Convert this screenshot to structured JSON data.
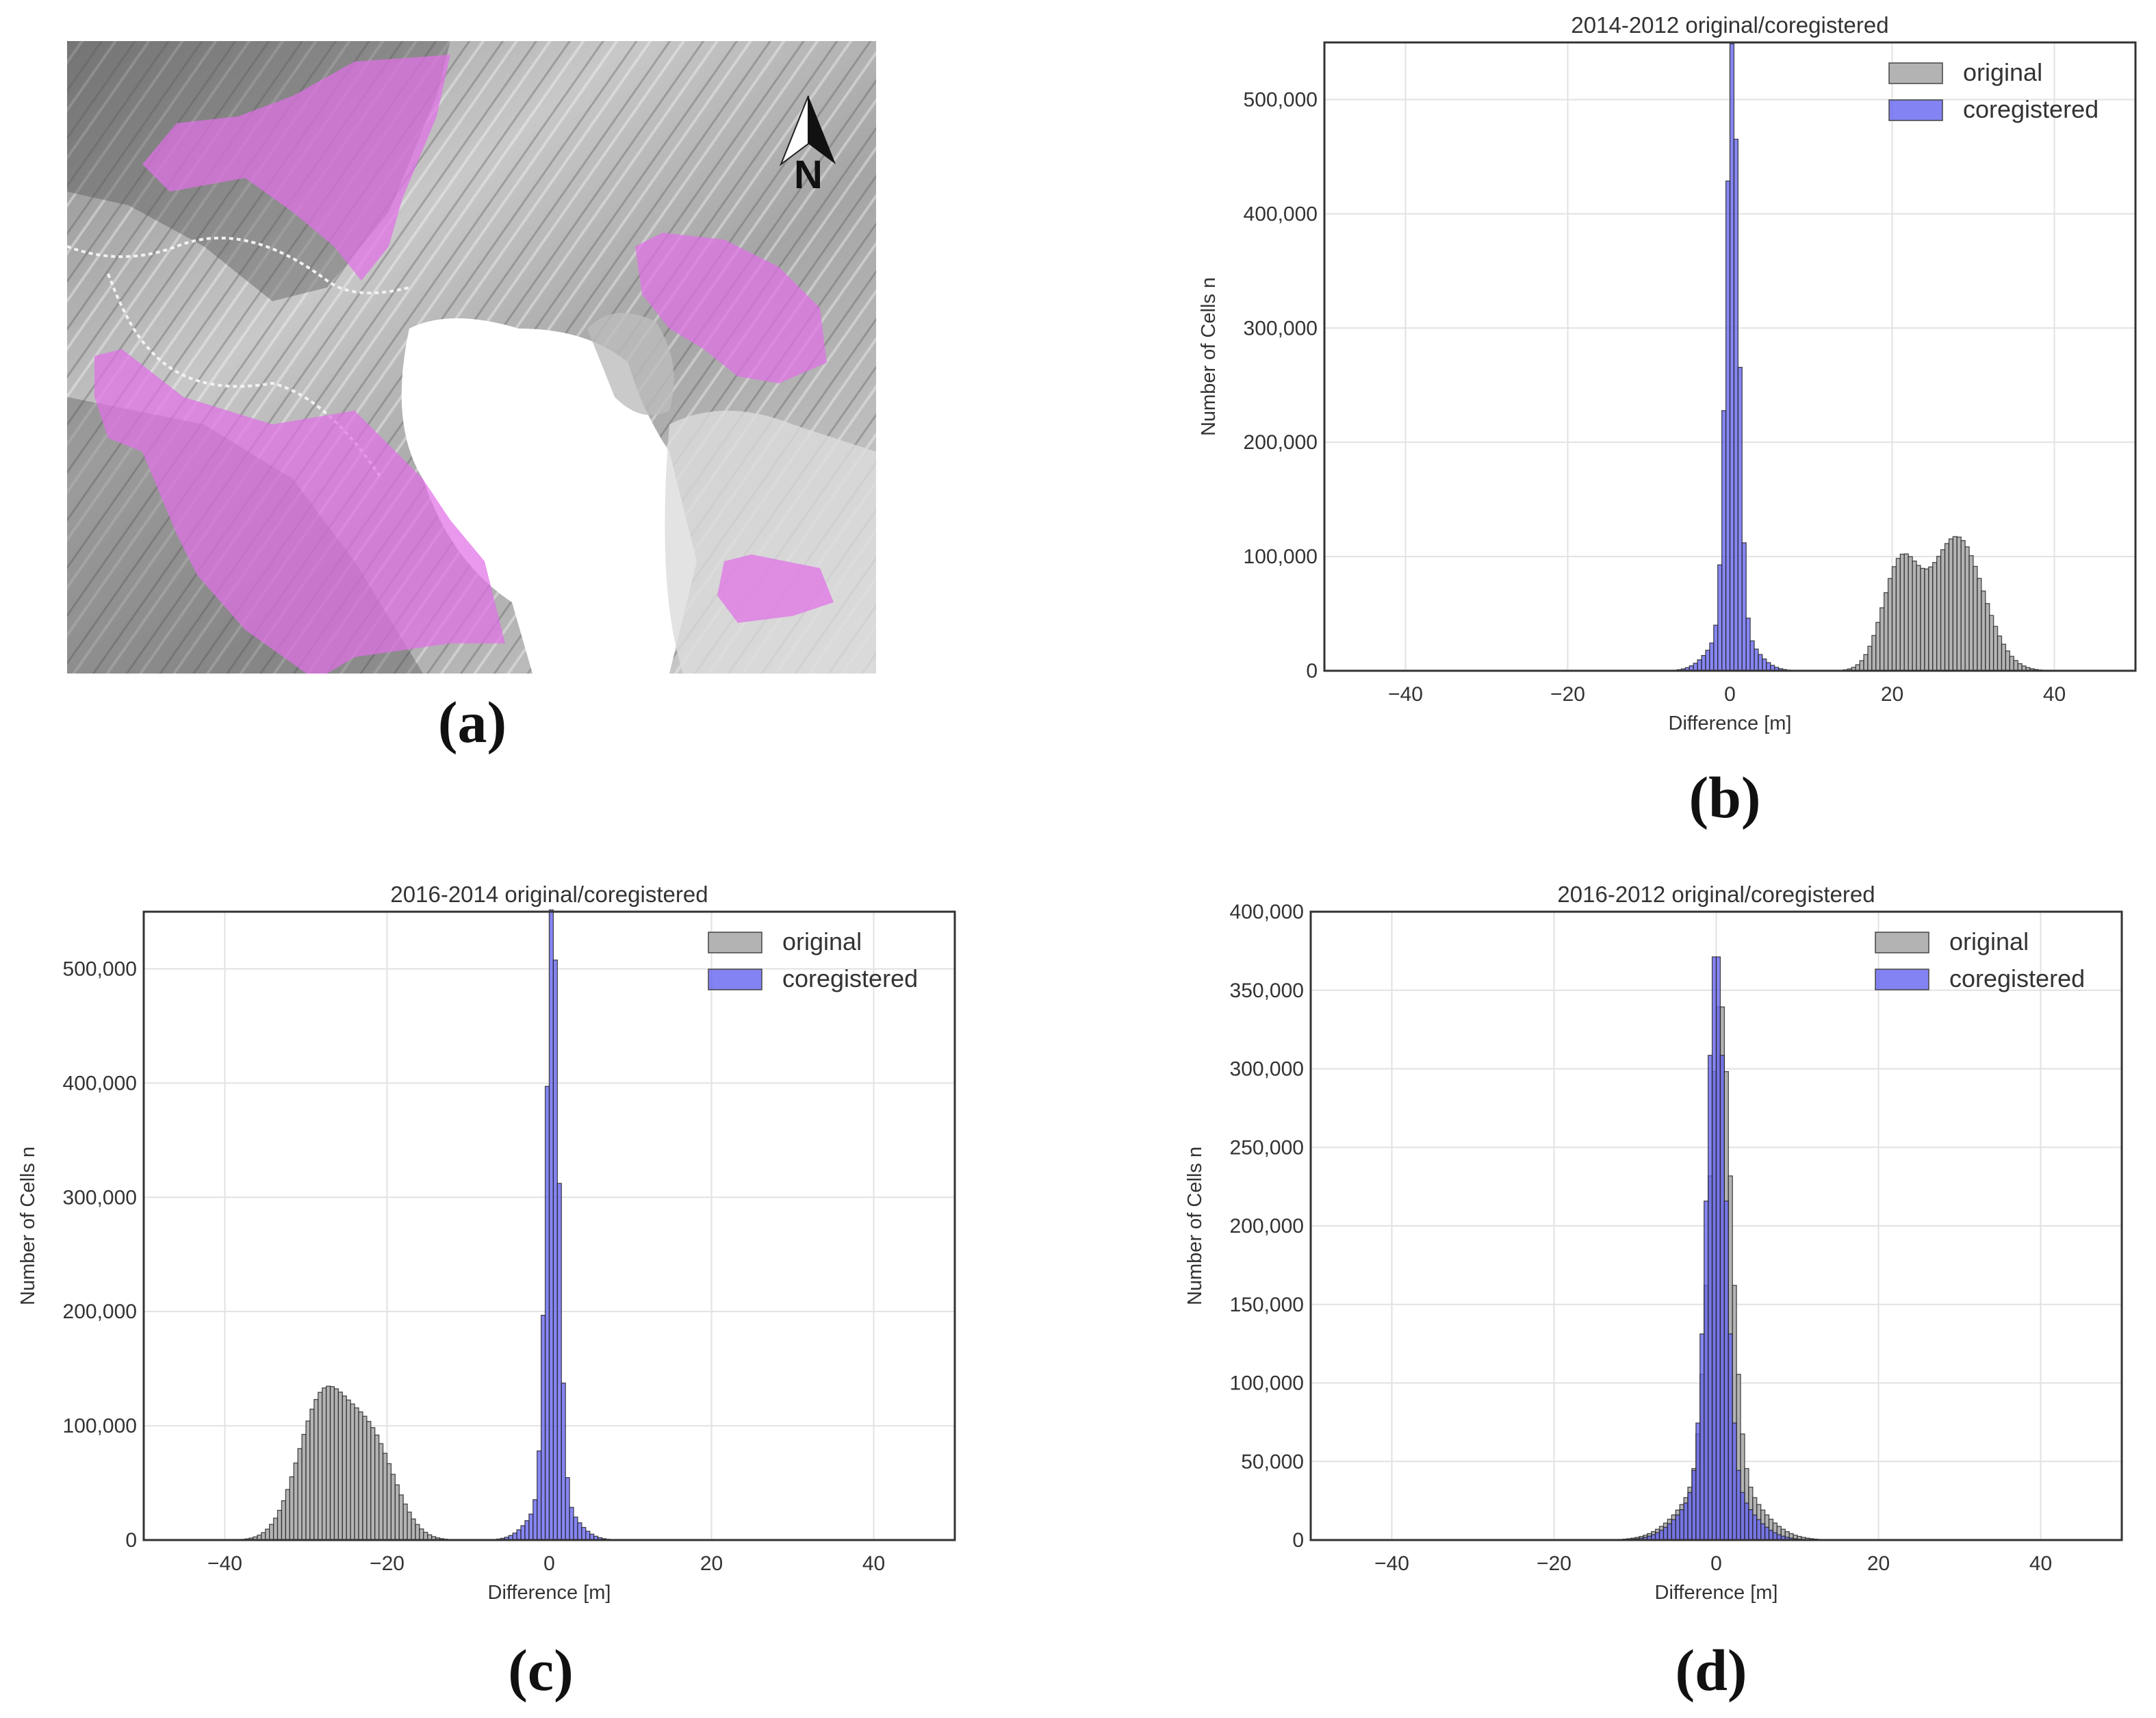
{
  "panels": {
    "a": "(a)",
    "b": "(b)",
    "c": "(c)",
    "d": "(d)"
  },
  "map": {
    "north_label": "N",
    "colors": {
      "overlay": "#e070e8",
      "hillshade_light": "#d8d8d8",
      "hillshade_dark": "#6a6a6a"
    }
  },
  "colors": {
    "original": "#b3b3b3",
    "coregistered": "#6464f0"
  },
  "chart_data": [
    {
      "id": "b",
      "type": "bar",
      "title": "2014-2012 original/coregistered",
      "xlabel": "Difference [m]",
      "ylabel": "Number of Cells n",
      "xlim": [
        -50,
        50
      ],
      "ylim": [
        0,
        550000
      ],
      "xticks": [
        -40,
        -20,
        0,
        20,
        40
      ],
      "yticks": [
        0,
        100000,
        200000,
        300000,
        400000,
        500000
      ],
      "legend": {
        "position": "top-right",
        "entries": [
          "original",
          "coregistered"
        ]
      },
      "series": [
        {
          "name": "original",
          "components": [
            {
              "mean": 21.0,
              "sd": 2.2,
              "peak": 90000
            },
            {
              "mean": 28.0,
              "sd": 3.2,
              "peak": 117000
            }
          ]
        },
        {
          "name": "coregistered",
          "components": [
            {
              "mean": 0.3,
              "sd": 0.75,
              "peak": 510000
            },
            {
              "mean": 0.3,
              "sd": 2.4,
              "peak": 40000
            }
          ]
        }
      ],
      "bin_width": 0.5
    },
    {
      "id": "c",
      "type": "bar",
      "title": "2016-2014 original/coregistered",
      "xlabel": "Difference [m]",
      "ylabel": "Number of Cells n",
      "xlim": [
        -50,
        50
      ],
      "ylim": [
        0,
        550000
      ],
      "xticks": [
        -40,
        -20,
        0,
        20,
        40
      ],
      "yticks": [
        0,
        100000,
        200000,
        300000,
        400000,
        500000
      ],
      "legend": {
        "position": "top-right",
        "entries": [
          "original",
          "coregistered"
        ]
      },
      "series": [
        {
          "name": "original",
          "components": [
            {
              "mean": -28.0,
              "sd": 3.0,
              "peak": 120000
            },
            {
              "mean": -22.0,
              "sd": 3.0,
              "peak": 85000
            }
          ]
        },
        {
          "name": "coregistered",
          "components": [
            {
              "mean": 0.4,
              "sd": 0.75,
              "peak": 522000
            },
            {
              "mean": 0.4,
              "sd": 2.4,
              "peak": 40000
            }
          ]
        }
      ],
      "bin_width": 0.5
    },
    {
      "id": "d",
      "type": "bar",
      "title": "2016-2012 original/coregistered",
      "xlabel": "Difference [m]",
      "ylabel": "Number of Cells n",
      "xlim": [
        -50,
        50
      ],
      "ylim": [
        0,
        400000
      ],
      "xticks": [
        -40,
        -20,
        0,
        20,
        40
      ],
      "yticks": [
        0,
        50000,
        100000,
        150000,
        200000,
        250000,
        300000,
        350000,
        400000
      ],
      "legend": {
        "position": "top-right",
        "entries": [
          "original",
          "coregistered"
        ]
      },
      "series": [
        {
          "name": "original",
          "components": [
            {
              "mean": 0.5,
              "sd": 1.3,
              "peak": 300000
            },
            {
              "mean": 0.5,
              "sd": 4.0,
              "peak": 45000
            }
          ]
        },
        {
          "name": "coregistered",
          "components": [
            {
              "mean": 0.0,
              "sd": 1.1,
              "peak": 340000
            },
            {
              "mean": 0.0,
              "sd": 3.5,
              "peak": 40000
            }
          ]
        }
      ],
      "bin_width": 0.5
    }
  ]
}
